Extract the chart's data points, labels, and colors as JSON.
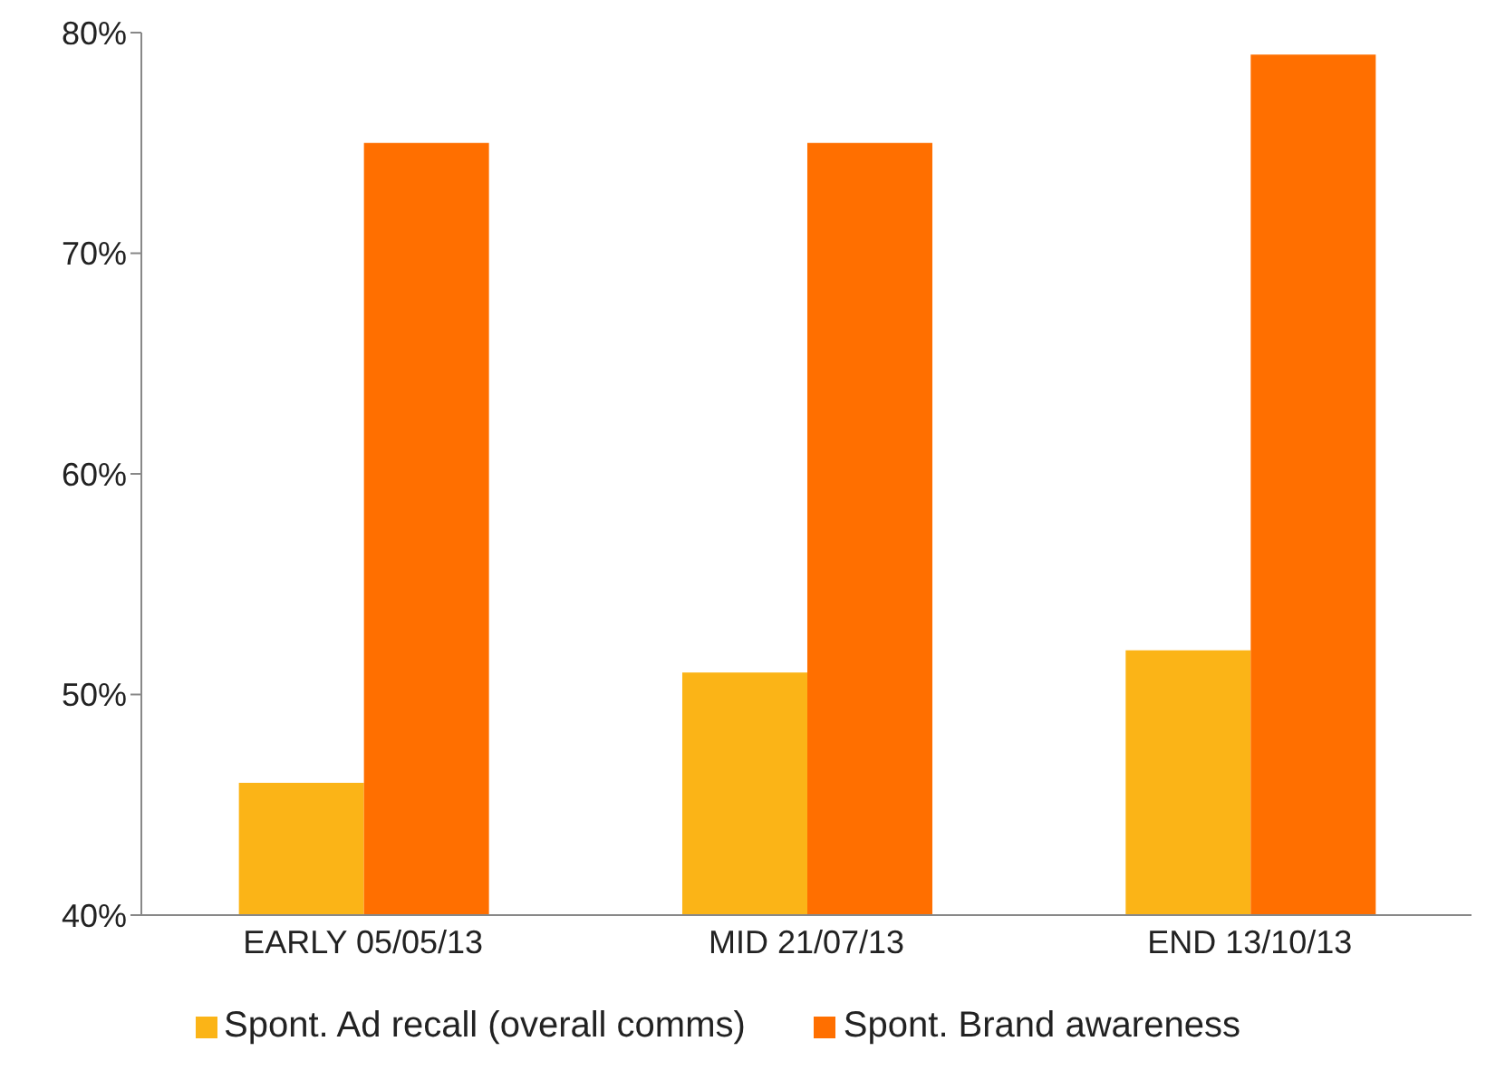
{
  "chart_data": {
    "type": "bar",
    "categories": [
      "EARLY 05/05/13",
      "MID 21/07/13",
      "END 13/10/13"
    ],
    "series": [
      {
        "name": "Spont. Ad recall (overall comms)",
        "color": "#fbb417",
        "values": [
          46,
          51,
          52
        ]
      },
      {
        "name": "Spont. Brand awareness",
        "color": "#ff6f00",
        "values": [
          75,
          75,
          79
        ]
      }
    ],
    "ylim": [
      40,
      80
    ],
    "yticks": [
      {
        "value": 40,
        "label": "40%"
      },
      {
        "value": 50,
        "label": "50%"
      },
      {
        "value": 60,
        "label": "60%"
      },
      {
        "value": 70,
        "label": "70%"
      },
      {
        "value": 80,
        "label": "80%"
      }
    ],
    "grid": false,
    "legend": "bottom"
  }
}
